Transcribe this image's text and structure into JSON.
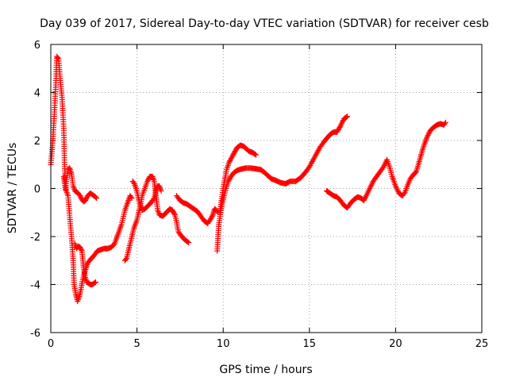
{
  "chart_data": {
    "type": "scatter",
    "title": "Day 039 of 2017, Sidereal Day-to-day VTEC variation (SDTVAR) for receiver cesb",
    "xlabel": "GPS time / hours",
    "ylabel": "SDTVAR / TECUs",
    "xlim": [
      0,
      25
    ],
    "ylim": [
      -6,
      6
    ],
    "xticks": [
      0,
      5,
      10,
      15,
      20,
      25
    ],
    "yticks": [
      -6,
      -4,
      -2,
      0,
      2,
      4,
      6
    ],
    "grid": true,
    "marker": "+",
    "color": "#ff0000",
    "series": [
      {
        "points": [
          [
            0.0,
            1.0
          ],
          [
            0.1,
            1.8
          ],
          [
            0.2,
            3.0
          ],
          [
            0.3,
            4.5
          ],
          [
            0.35,
            5.5
          ],
          [
            0.45,
            5.4
          ],
          [
            0.55,
            4.5
          ],
          [
            0.65,
            3.8
          ],
          [
            0.75,
            2.5
          ],
          [
            0.8,
            1.0
          ],
          [
            0.85,
            0.2
          ],
          [
            0.9,
            -0.1
          ],
          [
            1.0,
            -0.3
          ],
          [
            1.1,
            -1.2
          ],
          [
            1.2,
            -2.0
          ],
          [
            1.3,
            -3.0
          ],
          [
            1.35,
            -4.0
          ],
          [
            1.45,
            -4.4
          ],
          [
            1.55,
            -4.7
          ],
          [
            1.65,
            -4.5
          ],
          [
            1.75,
            -4.2
          ],
          [
            1.85,
            -3.8
          ],
          [
            1.95,
            -3.5
          ],
          [
            2.05,
            -3.3
          ],
          [
            2.15,
            -3.1
          ],
          [
            2.3,
            -2.95
          ],
          [
            2.5,
            -2.8
          ],
          [
            2.7,
            -2.6
          ],
          [
            2.9,
            -2.55
          ],
          [
            3.1,
            -2.5
          ],
          [
            3.3,
            -2.5
          ],
          [
            3.5,
            -2.45
          ],
          [
            3.7,
            -2.3
          ],
          [
            3.9,
            -1.9
          ],
          [
            4.1,
            -1.5
          ],
          [
            4.3,
            -0.9
          ],
          [
            4.5,
            -0.5
          ],
          [
            4.6,
            -0.3
          ],
          [
            4.7,
            -0.4
          ]
        ]
      },
      {
        "points": [
          [
            0.75,
            0.5
          ],
          [
            0.8,
            0.2
          ],
          [
            0.85,
            -0.05
          ],
          [
            0.9,
            0.3
          ],
          [
            1.0,
            0.8
          ],
          [
            1.1,
            0.85
          ],
          [
            1.2,
            0.6
          ],
          [
            1.3,
            0.1
          ],
          [
            1.4,
            -0.1
          ],
          [
            1.5,
            -0.15
          ],
          [
            1.6,
            -0.2
          ],
          [
            1.7,
            -0.3
          ],
          [
            1.8,
            -0.45
          ],
          [
            1.9,
            -0.55
          ],
          [
            2.0,
            -0.5
          ],
          [
            2.1,
            -0.35
          ],
          [
            2.2,
            -0.25
          ],
          [
            2.3,
            -0.2
          ],
          [
            2.4,
            -0.25
          ],
          [
            2.5,
            -0.3
          ],
          [
            2.6,
            -0.35
          ],
          [
            2.65,
            -0.4
          ]
        ]
      },
      {
        "points": [
          [
            1.4,
            -2.3
          ],
          [
            1.5,
            -2.5
          ],
          [
            1.6,
            -2.4
          ],
          [
            1.7,
            -2.45
          ],
          [
            1.8,
            -2.6
          ],
          [
            1.85,
            -2.9
          ],
          [
            1.9,
            -3.3
          ],
          [
            2.0,
            -3.7
          ],
          [
            2.1,
            -3.9
          ],
          [
            2.2,
            -3.95
          ],
          [
            2.3,
            -4.0
          ],
          [
            2.4,
            -4.0
          ],
          [
            2.5,
            -3.95
          ],
          [
            2.6,
            -3.9
          ]
        ]
      },
      {
        "points": [
          [
            4.3,
            -3.0
          ],
          [
            4.4,
            -2.9
          ],
          [
            4.5,
            -2.6
          ],
          [
            4.6,
            -2.3
          ],
          [
            4.7,
            -2.0
          ],
          [
            4.8,
            -1.7
          ],
          [
            4.9,
            -1.5
          ],
          [
            5.0,
            -1.3
          ],
          [
            5.1,
            -1.0
          ],
          [
            5.2,
            -0.7
          ],
          [
            5.3,
            -0.3
          ],
          [
            5.45,
            0.0
          ],
          [
            5.6,
            0.3
          ],
          [
            5.75,
            0.5
          ],
          [
            5.9,
            0.5
          ],
          [
            6.0,
            0.3
          ],
          [
            6.05,
            0.0
          ],
          [
            6.1,
            -0.3
          ],
          [
            6.15,
            -0.6
          ],
          [
            6.2,
            -0.9
          ],
          [
            6.3,
            -1.1
          ],
          [
            6.5,
            -1.15
          ],
          [
            6.7,
            -1.0
          ],
          [
            6.9,
            -0.85
          ],
          [
            7.05,
            -0.9
          ],
          [
            7.2,
            -1.1
          ],
          [
            7.3,
            -1.4
          ],
          [
            7.4,
            -1.8
          ],
          [
            7.6,
            -2.0
          ],
          [
            7.8,
            -2.15
          ],
          [
            8.0,
            -2.25
          ]
        ]
      },
      {
        "points": [
          [
            4.75,
            0.3
          ],
          [
            4.85,
            0.2
          ],
          [
            4.95,
            0.0
          ],
          [
            5.05,
            -0.3
          ],
          [
            5.15,
            -0.6
          ],
          [
            5.3,
            -0.9
          ],
          [
            5.45,
            -0.85
          ],
          [
            5.6,
            -0.75
          ],
          [
            5.8,
            -0.6
          ],
          [
            6.0,
            -0.4
          ],
          [
            6.1,
            -0.1
          ],
          [
            6.2,
            0.1
          ],
          [
            6.3,
            0.1
          ],
          [
            6.4,
            -0.1
          ]
        ]
      },
      {
        "points": [
          [
            7.3,
            -0.3
          ],
          [
            7.5,
            -0.5
          ],
          [
            7.7,
            -0.6
          ],
          [
            7.9,
            -0.65
          ],
          [
            8.1,
            -0.75
          ],
          [
            8.3,
            -0.85
          ],
          [
            8.5,
            -0.95
          ],
          [
            8.7,
            -1.15
          ],
          [
            8.9,
            -1.35
          ],
          [
            9.1,
            -1.45
          ],
          [
            9.25,
            -1.3
          ],
          [
            9.4,
            -1.1
          ],
          [
            9.5,
            -0.85
          ],
          [
            9.6,
            -0.9
          ],
          [
            9.7,
            -1.0
          ]
        ]
      },
      {
        "points": [
          [
            9.65,
            -2.6
          ],
          [
            9.7,
            -2.0
          ],
          [
            9.75,
            -1.5
          ],
          [
            9.85,
            -1.0
          ],
          [
            9.95,
            -0.6
          ],
          [
            10.05,
            -0.3
          ],
          [
            10.15,
            0.0
          ],
          [
            10.3,
            0.3
          ],
          [
            10.45,
            0.5
          ],
          [
            10.6,
            0.65
          ],
          [
            10.8,
            0.75
          ],
          [
            11.0,
            0.8
          ],
          [
            11.3,
            0.85
          ],
          [
            11.6,
            0.85
          ],
          [
            11.9,
            0.82
          ],
          [
            12.2,
            0.78
          ],
          [
            12.5,
            0.6
          ],
          [
            12.8,
            0.4
          ],
          [
            13.0,
            0.35
          ],
          [
            13.3,
            0.25
          ],
          [
            13.6,
            0.2
          ],
          [
            13.9,
            0.3
          ],
          [
            14.2,
            0.3
          ],
          [
            14.5,
            0.45
          ],
          [
            14.8,
            0.7
          ],
          [
            15.0,
            0.9
          ],
          [
            15.3,
            1.3
          ],
          [
            15.6,
            1.7
          ],
          [
            15.9,
            2.0
          ],
          [
            16.2,
            2.25
          ],
          [
            16.4,
            2.35
          ],
          [
            16.6,
            2.35
          ],
          [
            16.8,
            2.6
          ],
          [
            17.0,
            2.9
          ],
          [
            17.2,
            3.0
          ]
        ]
      },
      {
        "points": [
          [
            9.8,
            -1.0
          ],
          [
            9.9,
            -0.5
          ],
          [
            10.0,
            0.0
          ],
          [
            10.1,
            0.4
          ],
          [
            10.2,
            0.8
          ],
          [
            10.35,
            1.1
          ],
          [
            10.5,
            1.3
          ],
          [
            10.65,
            1.5
          ],
          [
            10.8,
            1.7
          ],
          [
            11.0,
            1.8
          ],
          [
            11.2,
            1.75
          ],
          [
            11.35,
            1.65
          ],
          [
            11.5,
            1.55
          ],
          [
            11.7,
            1.5
          ],
          [
            11.9,
            1.4
          ]
        ]
      },
      {
        "points": [
          [
            16.0,
            -0.1
          ],
          [
            16.2,
            -0.2
          ],
          [
            16.4,
            -0.3
          ],
          [
            16.6,
            -0.35
          ],
          [
            16.8,
            -0.5
          ],
          [
            17.0,
            -0.7
          ],
          [
            17.2,
            -0.8
          ],
          [
            17.4,
            -0.6
          ],
          [
            17.6,
            -0.45
          ],
          [
            17.8,
            -0.35
          ],
          [
            18.0,
            -0.4
          ],
          [
            18.15,
            -0.5
          ],
          [
            18.3,
            -0.3
          ],
          [
            18.5,
            0.0
          ],
          [
            18.7,
            0.3
          ],
          [
            18.9,
            0.5
          ],
          [
            19.1,
            0.7
          ],
          [
            19.3,
            0.9
          ],
          [
            19.5,
            1.2
          ],
          [
            19.65,
            0.9
          ],
          [
            19.8,
            0.5
          ],
          [
            20.0,
            0.1
          ],
          [
            20.2,
            -0.2
          ],
          [
            20.4,
            -0.3
          ],
          [
            20.55,
            -0.15
          ],
          [
            20.7,
            0.15
          ],
          [
            20.85,
            0.4
          ],
          [
            21.0,
            0.55
          ],
          [
            21.2,
            0.7
          ],
          [
            21.4,
            1.2
          ],
          [
            21.6,
            1.7
          ],
          [
            21.8,
            2.1
          ],
          [
            22.0,
            2.4
          ],
          [
            22.2,
            2.55
          ],
          [
            22.4,
            2.65
          ],
          [
            22.6,
            2.7
          ],
          [
            22.8,
            2.65
          ],
          [
            22.9,
            2.75
          ]
        ]
      }
    ]
  }
}
